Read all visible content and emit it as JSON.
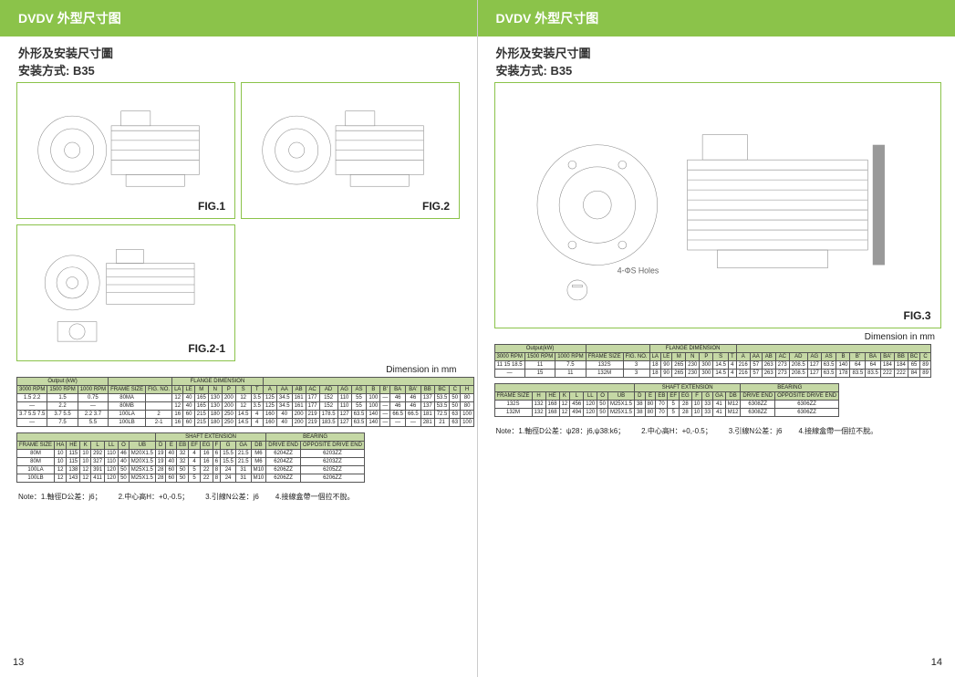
{
  "layout": {
    "page_bg": "#ffffff",
    "accent": "#8bc34a",
    "table_header_bg": "#c5d8a5",
    "border_color": "#555555"
  },
  "left": {
    "header": "DVDV  外型尺寸图",
    "subtitle_line1": "外形及安装尺寸圖",
    "subtitle_line2": "安装方式: B35",
    "figs": {
      "fig1": "FIG.1",
      "fig2": "FIG.2",
      "fig21": "FIG.2-1"
    },
    "dim_note": "Dimension in  mm",
    "table1": {
      "head_group1": "Output (kW)",
      "head_group2": "FLANGE DIMENSION",
      "cols_top": [
        "3000 RPM",
        "1500 RPM",
        "1000 RPM",
        "FRAME SIZE",
        "FIG. NO.",
        "LA",
        "LE",
        "M",
        "N",
        "P",
        "S",
        "T",
        "A",
        "AA",
        "AB",
        "AC",
        "AD",
        "AG",
        "AS",
        "B",
        "B'",
        "BA",
        "BA'",
        "BB",
        "BC",
        "C",
        "H"
      ],
      "rows": [
        [
          "1.5 2.2",
          "1.5",
          "0.75",
          "80MA",
          "",
          "12",
          "40",
          "165",
          "130",
          "200",
          "12",
          "3.5",
          "125",
          "34.5",
          "161",
          "177",
          "152",
          "110",
          "55",
          "100",
          "—",
          "46",
          "46",
          "137",
          "53.5",
          "50",
          "80"
        ],
        [
          "—",
          "2.2",
          "—",
          "80MB",
          "",
          "12",
          "40",
          "165",
          "130",
          "200",
          "12",
          "3.5",
          "125",
          "34.5",
          "161",
          "177",
          "152",
          "110",
          "55",
          "100",
          "—",
          "46",
          "46",
          "137",
          "53.5",
          "50",
          "80"
        ],
        [
          "3.7 5.5 7.5",
          "3.7 5.5",
          "2.2 3.7",
          "100LA",
          "2",
          "16",
          "60",
          "215",
          "180",
          "250",
          "14.5",
          "4",
          "160",
          "40",
          "200",
          "219",
          "178.5",
          "127",
          "63.5",
          "140",
          "—",
          "66.5",
          "66.5",
          "181",
          "72.5",
          "63",
          "100"
        ],
        [
          "—",
          "7.5",
          "5.5",
          "100LB",
          "2-1",
          "16",
          "60",
          "215",
          "180",
          "250",
          "14.5",
          "4",
          "160",
          "40",
          "200",
          "219",
          "183.5",
          "127",
          "63.5",
          "140",
          "—",
          "—",
          "—",
          "281",
          "21",
          "63",
          "100"
        ]
      ]
    },
    "table2": {
      "head_group1": "SHAFT   EXTENSION",
      "head_group2": "BEARING",
      "cols": [
        "FRAME SIZE",
        "HA",
        "HE",
        "K",
        "L",
        "LL",
        "O",
        "UB",
        "D",
        "E",
        "EB",
        "EF",
        "EG",
        "F",
        "G",
        "GA",
        "DB",
        "DRIVE END",
        "OPPOSITE DRIVE  END"
      ],
      "rows": [
        [
          "80M",
          "10",
          "115",
          "10",
          "292",
          "110",
          "46",
          "M20X1.5",
          "19",
          "40",
          "32",
          "4",
          "16",
          "6",
          "15.5",
          "21.5",
          "M6",
          "6204ZZ",
          "6203ZZ"
        ],
        [
          "80M",
          "10",
          "115",
          "10",
          "327",
          "110",
          "40",
          "M20X1.5",
          "19",
          "40",
          "32",
          "4",
          "16",
          "6",
          "15.5",
          "21.5",
          "M6",
          "6204ZZ",
          "6203ZZ"
        ],
        [
          "100LA",
          "12",
          "138",
          "12",
          "391",
          "120",
          "50",
          "M25X1.5",
          "28",
          "60",
          "50",
          "5",
          "22",
          "8",
          "24",
          "31",
          "M10",
          "6206ZZ",
          "6205ZZ"
        ],
        [
          "100LB",
          "12",
          "143",
          "12",
          "411",
          "120",
          "50",
          "M25X1.5",
          "28",
          "60",
          "50",
          "5",
          "22",
          "8",
          "24",
          "31",
          "M10",
          "6206ZZ",
          "6206ZZ"
        ]
      ]
    },
    "notes": {
      "n1": "Note：1.軸徑D公差：j6；",
      "n2": "2.中心高H：+0,-0.5；",
      "n3": "3.引線N公差：j6",
      "n4": "4.接線盒帶一個拉不脫。"
    },
    "page_num": "13"
  },
  "right": {
    "header": "DVDV  外型尺寸图",
    "subtitle_line1": "外形及安装尺寸圖",
    "subtitle_line2": "安装方式: B35",
    "figs": {
      "fig3": "FIG.3"
    },
    "dim_note": "Dimension  in  mm",
    "table1": {
      "head_group1": "Output(kW)",
      "head_group2": "FLANGE DIMENSION",
      "cols_top": [
        "3000 RPM",
        "1500 RPM",
        "1000 RPM",
        "FRAME SIZE",
        "FIG. NO.",
        "LA",
        "LE",
        "M",
        "N",
        "P",
        "S",
        "T",
        "A",
        "AA",
        "AB",
        "AC",
        "AD",
        "AG",
        "AS",
        "B",
        "B'",
        "BA",
        "BA'",
        "BB",
        "BC",
        "C"
      ],
      "rows": [
        [
          "11 15 18.5",
          "11",
          "7.5",
          "132S",
          "3",
          "18",
          "90",
          "265",
          "230",
          "300",
          "14.5",
          "4",
          "216",
          "57",
          "263",
          "273",
          "208.5",
          "127",
          "63.5",
          "140",
          "64",
          "64",
          "184",
          "184",
          "65",
          "89"
        ],
        [
          "—",
          "15",
          "11",
          "132M",
          "3",
          "18",
          "90",
          "265",
          "230",
          "300",
          "14.5",
          "4",
          "216",
          "57",
          "263",
          "273",
          "208.5",
          "127",
          "63.5",
          "178",
          "83.5",
          "83.5",
          "222",
          "222",
          "84",
          "89"
        ]
      ]
    },
    "table2": {
      "head_group1": "SHAFT  EXTENSION",
      "head_group2": "BEARING",
      "cols": [
        "FRAME SIZE",
        "H",
        "HE",
        "K",
        "L",
        "LL",
        "O",
        "UB",
        "D",
        "E",
        "EB",
        "EF",
        "EG",
        "F",
        "G",
        "GA",
        "DB",
        "DRIVE END",
        "OPPOSITE DRIVE  END"
      ],
      "rows": [
        [
          "132S",
          "132",
          "168",
          "12",
          "456",
          "120",
          "50",
          "M25X1.5",
          "38",
          "80",
          "70",
          "5",
          "28",
          "10",
          "33",
          "41",
          "M12",
          "6308ZZ",
          "6306ZZ"
        ],
        [
          "132M",
          "132",
          "168",
          "12",
          "494",
          "120",
          "50",
          "M25X1.5",
          "38",
          "80",
          "70",
          "5",
          "28",
          "10",
          "33",
          "41",
          "M12",
          "6308ZZ",
          "6306ZZ"
        ]
      ]
    },
    "notes": {
      "n1": "Note：1.軸徑D公差：ψ28：j6,ψ38:k6；",
      "n2": "2.中心高H：+0,-0.5；",
      "n3": "3.引線N公差：j6",
      "n4": "4.接線盒帶一個拉不脫。"
    },
    "page_num": "14"
  }
}
